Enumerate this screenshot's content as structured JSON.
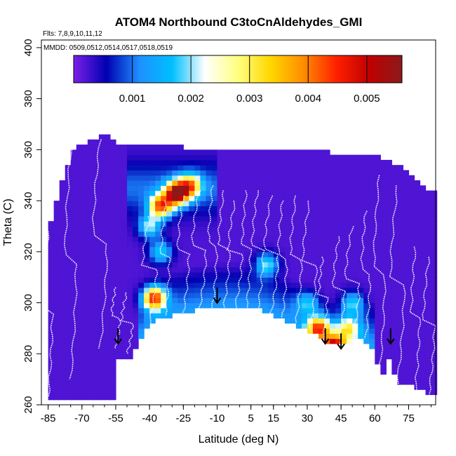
{
  "chart_data": {
    "type": "heatmap",
    "title": "ATOM4 Northbound C3toCnAldehydes_GMI",
    "flights_note": "Flts: 7,8,9,10,11,12",
    "dates_note": "MMDD: 0509,0512,0514,0517,0518,0519",
    "xlabel": "Latitude (deg N)",
    "ylabel": "Theta (C)",
    "xlim": [
      -88,
      87
    ],
    "ylim": [
      260,
      403
    ],
    "x_ticks": [
      -85,
      -70,
      -55,
      -40,
      -25,
      -10,
      5,
      15,
      30,
      45,
      60,
      75
    ],
    "y_ticks": [
      260,
      280,
      300,
      320,
      340,
      360,
      380,
      400
    ],
    "colorbar": {
      "range": [
        0,
        0.0056
      ],
      "ticks": [
        0.001,
        0.002,
        0.003,
        0.004,
        0.005
      ],
      "tick_labels": [
        "0.001",
        "0.002",
        "0.003",
        "0.004",
        "0.005"
      ],
      "colors": [
        "#7b1fe8",
        "#0000b0",
        "#1e90ff",
        "#00bfff",
        "#ffffff",
        "#ffff80",
        "#ffd700",
        "#ff8c00",
        "#ff2000",
        "#c00000",
        "#8b1a1a"
      ]
    },
    "background_level": 0.0002,
    "coverage_bottom": [
      [
        -85,
        263
      ],
      [
        -55,
        263
      ],
      [
        -55,
        277
      ],
      [
        -52,
        280
      ],
      [
        -50,
        276
      ],
      [
        -43,
        288
      ],
      [
        -37,
        294
      ],
      [
        -30,
        295
      ],
      [
        -20,
        297
      ],
      [
        -10,
        298
      ],
      [
        0,
        298
      ],
      [
        10,
        297
      ],
      [
        18,
        294
      ],
      [
        25,
        291
      ],
      [
        32,
        288
      ],
      [
        38,
        285
      ],
      [
        44,
        283
      ],
      [
        50,
        285
      ],
      [
        55,
        286
      ],
      [
        60,
        282
      ],
      [
        63,
        270
      ],
      [
        66,
        278
      ],
      [
        70,
        268
      ],
      [
        75,
        268
      ],
      [
        80,
        266
      ],
      [
        85,
        264
      ]
    ],
    "coverage_top": [
      [
        -85,
        328
      ],
      [
        -80,
        344
      ],
      [
        -75,
        358
      ],
      [
        -70,
        362
      ],
      [
        -65,
        364
      ],
      [
        -60,
        366
      ],
      [
        -55,
        362
      ],
      [
        -25,
        362
      ],
      [
        -25,
        360
      ],
      [
        -5,
        360
      ],
      [
        25,
        360
      ],
      [
        40,
        359
      ],
      [
        60,
        358
      ],
      [
        70,
        354
      ],
      [
        75,
        350
      ],
      [
        80,
        346
      ],
      [
        85,
        344
      ]
    ],
    "hotspots": [
      {
        "lat": -28,
        "theta": 343,
        "value": 0.0049
      },
      {
        "lat": -35,
        "theta": 338,
        "value": 0.0037
      },
      {
        "lat": -22,
        "theta": 346,
        "value": 0.003
      },
      {
        "lat": -40,
        "theta": 330,
        "value": 0.0018
      },
      {
        "lat": -38,
        "theta": 302,
        "value": 0.0039
      },
      {
        "lat": -35,
        "theta": 320,
        "value": 0.0016
      },
      {
        "lat": 12,
        "theta": 315,
        "value": 0.0018
      },
      {
        "lat": 35,
        "theta": 290,
        "value": 0.0036
      },
      {
        "lat": 42,
        "theta": 283,
        "value": 0.0042
      },
      {
        "lat": 48,
        "theta": 290,
        "value": 0.0022
      },
      {
        "lat": 50,
        "theta": 300,
        "value": 0.0015
      },
      {
        "lat": 30,
        "theta": 300,
        "value": 0.0012
      }
    ],
    "profiles": [
      {
        "lat": -85,
        "theta_bottom": 263,
        "theta_top": 328
      },
      {
        "lat": -75,
        "theta_bottom": 270,
        "theta_top": 360
      },
      {
        "lat": -62,
        "theta_bottom": 282,
        "theta_top": 364
      },
      {
        "lat": -55,
        "theta_bottom": 282,
        "theta_top": 306
      },
      {
        "lat": -50,
        "theta_bottom": 280,
        "theta_top": 304
      },
      {
        "lat": -40,
        "theta_bottom": 292,
        "theta_top": 334
      },
      {
        "lat": -33,
        "theta_bottom": 295,
        "theta_top": 340
      },
      {
        "lat": -25,
        "theta_bottom": 296,
        "theta_top": 342
      },
      {
        "lat": -18,
        "theta_bottom": 297,
        "theta_top": 344
      },
      {
        "lat": -12,
        "theta_bottom": 298,
        "theta_top": 346
      },
      {
        "lat": -7,
        "theta_bottom": 298,
        "theta_top": 344
      },
      {
        "lat": -2,
        "theta_bottom": 298,
        "theta_top": 340
      },
      {
        "lat": 3,
        "theta_bottom": 298,
        "theta_top": 344
      },
      {
        "lat": 8,
        "theta_bottom": 297,
        "theta_top": 344
      },
      {
        "lat": 14,
        "theta_bottom": 296,
        "theta_top": 342
      },
      {
        "lat": 19,
        "theta_bottom": 294,
        "theta_top": 340
      },
      {
        "lat": 25,
        "theta_bottom": 292,
        "theta_top": 342
      },
      {
        "lat": 31,
        "theta_bottom": 289,
        "theta_top": 340
      },
      {
        "lat": 37,
        "theta_bottom": 286,
        "theta_top": 318
      },
      {
        "lat": 44,
        "theta_bottom": 283,
        "theta_top": 326
      },
      {
        "lat": 50,
        "theta_bottom": 285,
        "theta_top": 330
      },
      {
        "lat": 56,
        "theta_bottom": 286,
        "theta_top": 336
      },
      {
        "lat": 62,
        "theta_bottom": 272,
        "theta_top": 350
      },
      {
        "lat": 70,
        "theta_bottom": 268,
        "theta_top": 346
      },
      {
        "lat": 78,
        "theta_bottom": 266,
        "theta_top": 322
      },
      {
        "lat": 84,
        "theta_bottom": 264,
        "theta_top": 318
      }
    ],
    "arrows": [
      {
        "lat": -54,
        "theta": 290
      },
      {
        "lat": -10,
        "theta": 306
      },
      {
        "lat": 38,
        "theta": 290
      },
      {
        "lat": 45,
        "theta": 288
      },
      {
        "lat": 67,
        "theta": 290
      }
    ]
  }
}
